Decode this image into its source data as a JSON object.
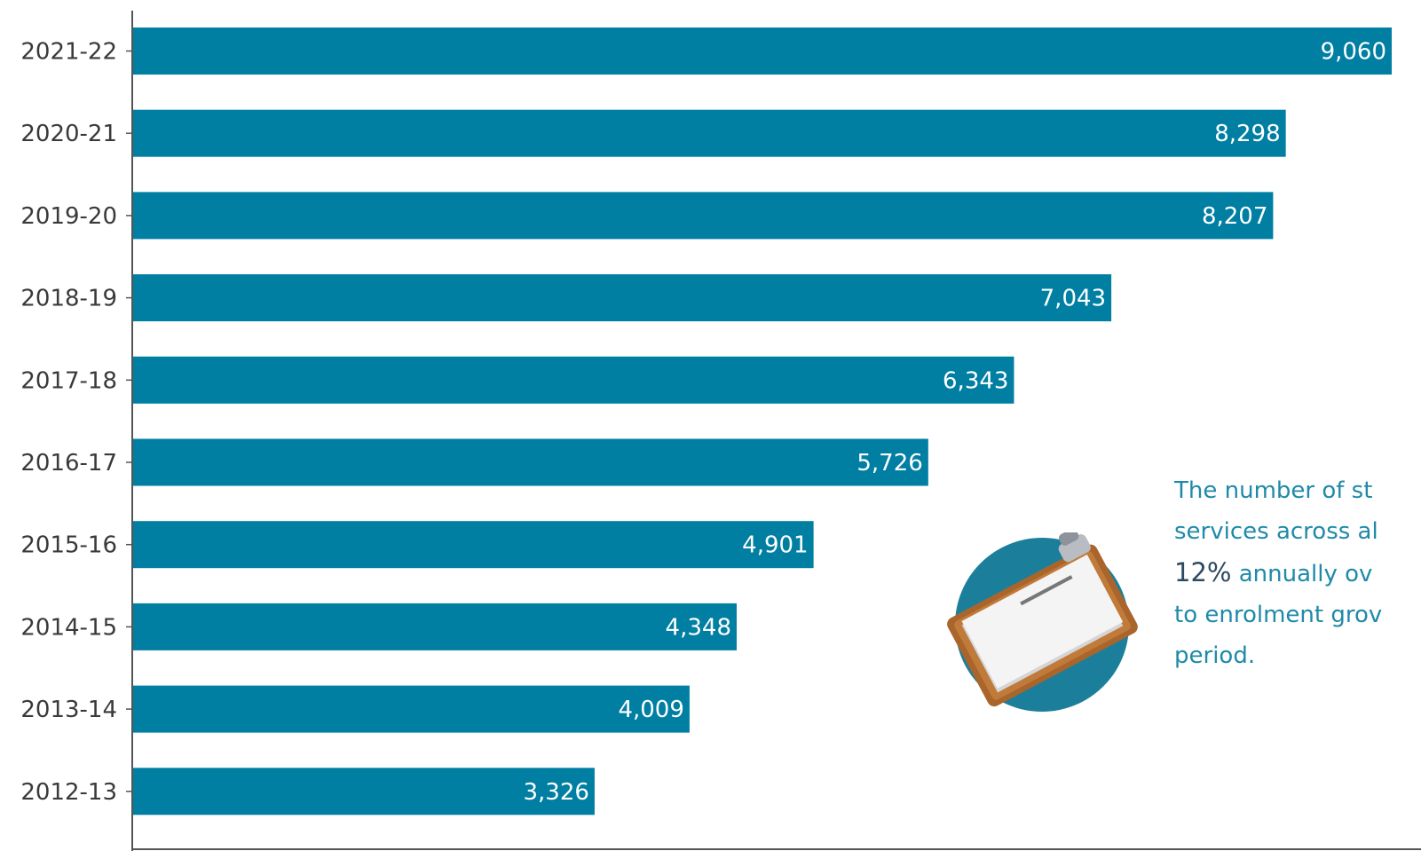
{
  "chart_data": {
    "type": "bar",
    "orientation": "horizontal",
    "categories": [
      "2021-22",
      "2020-21",
      "2019-20",
      "2018-19",
      "2017-18",
      "2016-17",
      "2015-16",
      "2014-15",
      "2013-14",
      "2012-13"
    ],
    "values": [
      9060,
      8298,
      8207,
      7043,
      6343,
      5726,
      4901,
      4348,
      4009,
      3326
    ],
    "value_labels": [
      "9,060",
      "8,298",
      "8,207",
      "7,043",
      "6,343",
      "5,726",
      "4,901",
      "4,348",
      "4,009",
      "3,326"
    ],
    "xlim": [
      0,
      9060
    ],
    "grid": false,
    "legend": "none",
    "bar_color": "#007fa3"
  },
  "annotation": {
    "line1": "The number of st",
    "line2": "services across al",
    "pct": "12%",
    "line3_rest": " annually ov",
    "line4": "to enrolment grov",
    "line5": "period."
  },
  "colors": {
    "bar": "#007fa3",
    "annotation_text": "#1f8aa8",
    "annotation_pct": "#2d4a62",
    "axis": "#555555"
  },
  "icons": {
    "illustration": "clipboard-icon"
  }
}
